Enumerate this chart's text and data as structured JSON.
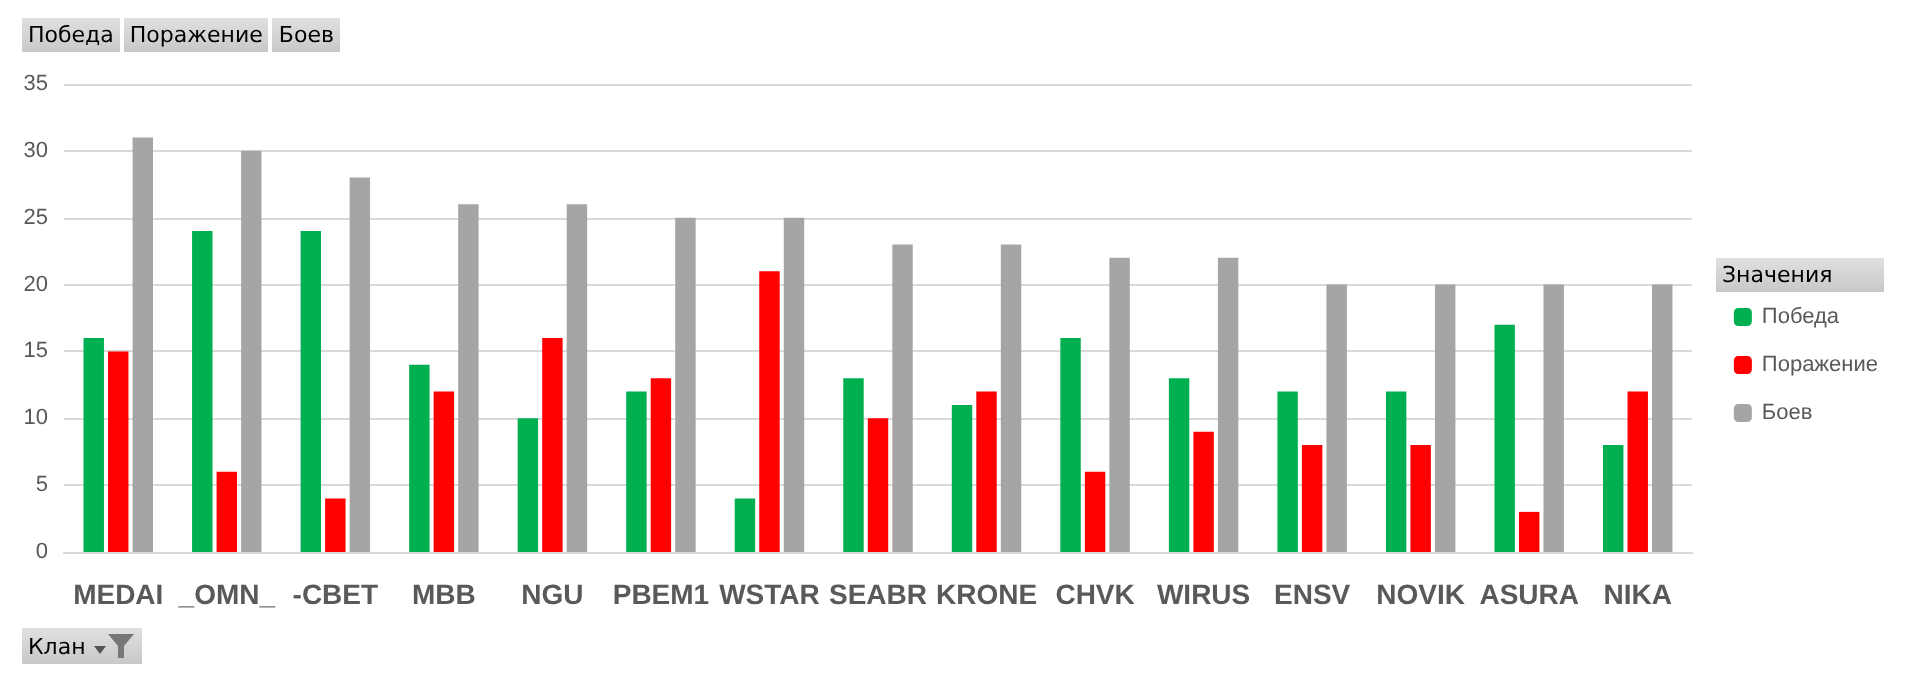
{
  "chart_data": {
    "type": "bar",
    "categories": [
      "MEDAI",
      "_OMN_",
      "-CBET",
      "MBB",
      "NGU",
      "PBEM1",
      "WSTAR",
      "SEABR",
      "KRONE",
      "CHVK",
      "WIRUS",
      "ENSV",
      "NOVIK",
      "ASURA",
      "NIKA"
    ],
    "series": [
      {
        "name": "Победа",
        "color": "#00b050",
        "values": [
          16,
          24,
          24,
          14,
          10,
          12,
          4,
          13,
          11,
          16,
          13,
          12,
          12,
          17,
          8
        ]
      },
      {
        "name": "Поражение",
        "color": "#ff0000",
        "values": [
          15,
          6,
          4,
          12,
          16,
          13,
          21,
          10,
          12,
          6,
          9,
          8,
          8,
          3,
          12
        ]
      },
      {
        "name": "Боев",
        "color": "#a5a5a5",
        "values": [
          31,
          30,
          28,
          26,
          26,
          25,
          25,
          23,
          23,
          22,
          22,
          20,
          20,
          20,
          20
        ]
      }
    ],
    "xlabel": "Клан",
    "legend_title": "Значения",
    "annotations": [
      "Победа",
      "Поражение",
      "Боев"
    ],
    "ylim": [
      0,
      35
    ],
    "yticks": [
      0,
      5,
      10,
      15,
      20,
      25,
      30,
      35
    ],
    "grid": "y",
    "legend": "right"
  }
}
